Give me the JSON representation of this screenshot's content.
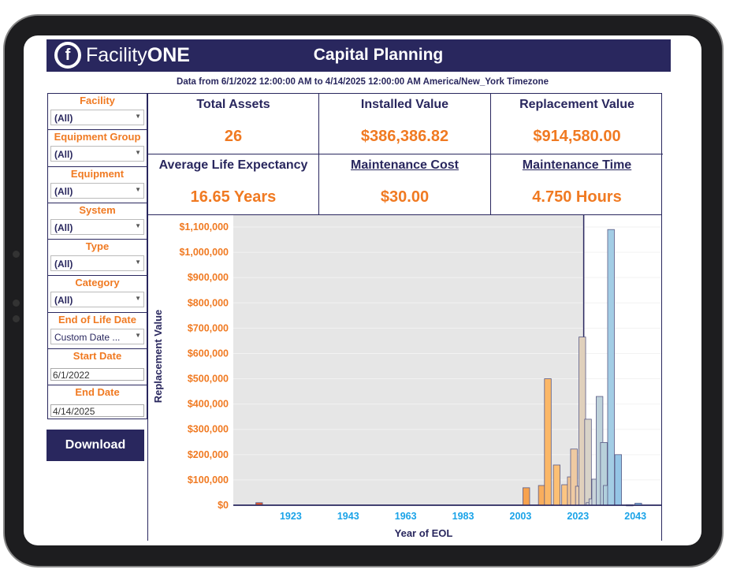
{
  "header": {
    "logo_text_light": "Facility",
    "logo_text_bold": "ONE",
    "logo_mark": "f",
    "title": "Capital Planning"
  },
  "subtitle": "Data from 6/1/2022 12:00:00 AM to 4/14/2025 12:00:00 AM America/New_York Timezone",
  "filters": [
    {
      "label": "Facility",
      "value": "(All)"
    },
    {
      "label": "Equipment Group",
      "value": "(All)"
    },
    {
      "label": "Equipment",
      "value": "(All)"
    },
    {
      "label": "System",
      "value": "(All)"
    },
    {
      "label": "Type",
      "value": "(All)"
    },
    {
      "label": "Category",
      "value": "(All)"
    },
    {
      "label": "End of Life Date",
      "value": "Custom Date ..."
    }
  ],
  "dates": [
    {
      "label": "Start Date",
      "value": "6/1/2022"
    },
    {
      "label": "End Date",
      "value": "4/14/2025"
    }
  ],
  "download_label": "Download",
  "kpis": [
    {
      "label": "Total Assets",
      "value": "26",
      "link": false
    },
    {
      "label": "Installed Value",
      "value": "$386,386.82",
      "link": false
    },
    {
      "label": "Replacement Value",
      "value": "$914,580.00",
      "link": false
    },
    {
      "label": "Average Life Expectancy",
      "value": "16.65 Years",
      "link": false
    },
    {
      "label": "Maintenance Cost",
      "value": "$30.00",
      "link": true
    },
    {
      "label": "Maintenance Time",
      "value": "4.750 Hours",
      "link": true
    }
  ],
  "colors": {
    "brand": "#29275e",
    "accent": "#f07a22",
    "axis_tick": "#1aa3e8",
    "past_shade": "#e6e6e6"
  },
  "chart_data": {
    "type": "bar",
    "xlabel": "Year of EOL",
    "ylabel": "Replacement Value",
    "xlim": [
      1903,
      2052
    ],
    "ylim": [
      0,
      1100000
    ],
    "x_ticks": [
      "1923",
      "1943",
      "1963",
      "1983",
      "2003",
      "2023",
      "2043"
    ],
    "y_ticks": [
      "$0",
      "$100,000",
      "$200,000",
      "$300,000",
      "$400,000",
      "$500,000",
      "$600,000",
      "$700,000",
      "$800,000",
      "$900,000",
      "$1,000,000",
      "$1,100,000"
    ],
    "shaded_until_year": 2025,
    "bars": [
      {
        "x": 1912,
        "value": 10000,
        "color": "#e0562a"
      },
      {
        "x": 2005,
        "value": 69000,
        "color": "#f7a24e"
      },
      {
        "x": 2010.4,
        "value": 78000,
        "color": "#f9ad5c"
      },
      {
        "x": 2012.5,
        "value": 500000,
        "color": "#fbb767"
      },
      {
        "x": 2015.6,
        "value": 159000,
        "color": "#fcbf74"
      },
      {
        "x": 2018.5,
        "value": 81000,
        "color": "#fcc582"
      },
      {
        "x": 2020.5,
        "value": 112000,
        "color": "#f6c894"
      },
      {
        "x": 2021.6,
        "value": 222000,
        "color": "#efcaa2"
      },
      {
        "x": 2023.3,
        "value": 75000,
        "color": "#e8cdb0"
      },
      {
        "x": 2024.5,
        "value": 665000,
        "color": "#e0d0bc"
      },
      {
        "x": 2026.5,
        "value": 340000,
        "color": "#d8d3c8"
      },
      {
        "x": 2027,
        "value": 10000,
        "color": "#d4d6d2"
      },
      {
        "x": 2028,
        "value": 25000,
        "color": "#d0d7d8"
      },
      {
        "x": 2029,
        "value": 103000,
        "color": "#c9d4da"
      },
      {
        "x": 2030.5,
        "value": 430000,
        "color": "#bed2da"
      },
      {
        "x": 2032,
        "value": 248000,
        "color": "#b8d0da"
      },
      {
        "x": 2033,
        "value": 78000,
        "color": "#b0cfdc"
      },
      {
        "x": 2034.5,
        "value": 1090000,
        "color": "#a3cde5"
      },
      {
        "x": 2037,
        "value": 200000,
        "color": "#94c5e6"
      },
      {
        "x": 2041,
        "value": 2000,
        "color": "#3a5d9a"
      },
      {
        "x": 2044,
        "value": 8000,
        "color": "#7fb7e3"
      }
    ]
  }
}
